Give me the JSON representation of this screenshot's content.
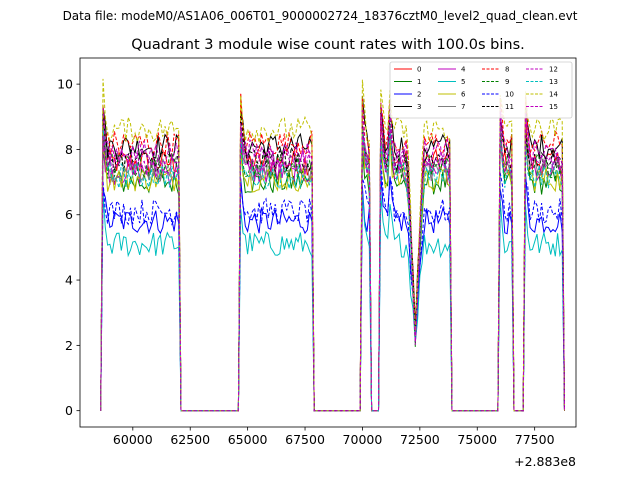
{
  "chart_data": {
    "type": "line",
    "suptitle": "Data file: modeM0/AS1A06_006T01_9000002724_18376cztM0_level2_quad_clean.evt",
    "title": "Quadrant 3 module wise count rates with 100.0s bins.",
    "xlabel": "",
    "ylabel": "",
    "x_offset_label": "+2.883e8",
    "xlim": [
      57700,
      79300
    ],
    "ylim": [
      -0.5,
      10.8
    ],
    "x_ticks": [
      60000,
      62500,
      65000,
      67500,
      70000,
      72500,
      75000,
      77500
    ],
    "x_tick_labels": [
      "60000",
      "62500",
      "65000",
      "67500",
      "70000",
      "72500",
      "75000",
      "77500"
    ],
    "y_ticks": [
      0,
      2,
      4,
      6,
      8,
      10
    ],
    "y_tick_labels": [
      "0",
      "2",
      "4",
      "6",
      "8",
      "10"
    ],
    "legend_location": "upper right",
    "bin_width_s": 100,
    "segments": [
      {
        "start": 58700,
        "end": 62000
      },
      {
        "start": 64700,
        "end": 67800
      },
      {
        "start": 70000,
        "end": 70300
      },
      {
        "start": 70800,
        "end": 71100
      },
      {
        "start": 71200,
        "end": 73800
      },
      {
        "start": 76000,
        "end": 76500
      },
      {
        "start": 77100,
        "end": 78700
      }
    ],
    "dip_time": 72300,
    "series": [
      {
        "name": "0",
        "color": "#ff0000",
        "dash": "solid",
        "level": 7.6
      },
      {
        "name": "1",
        "color": "#008000",
        "dash": "solid",
        "level": 7.0
      },
      {
        "name": "2",
        "color": "#0000ff",
        "dash": "solid",
        "level": 5.8
      },
      {
        "name": "3",
        "color": "#000000",
        "dash": "solid",
        "level": 8.1
      },
      {
        "name": "4",
        "color": "#bf00bf",
        "dash": "solid",
        "level": 7.3
      },
      {
        "name": "5",
        "color": "#00bfbf",
        "dash": "solid",
        "level": 5.1
      },
      {
        "name": "6",
        "color": "#bfbf00",
        "dash": "solid",
        "level": 7.1
      },
      {
        "name": "7",
        "color": "#7f7f7f",
        "dash": "solid",
        "level": 7.4
      },
      {
        "name": "8",
        "color": "#ff0000",
        "dash": "dashed",
        "level": 8.2
      },
      {
        "name": "9",
        "color": "#008000",
        "dash": "dashed",
        "level": 7.5
      },
      {
        "name": "10",
        "color": "#0000ff",
        "dash": "dashed",
        "level": 6.1
      },
      {
        "name": "11",
        "color": "#000000",
        "dash": "dashed",
        "level": 7.7
      },
      {
        "name": "12",
        "color": "#bf00bf",
        "dash": "dashed",
        "level": 7.9
      },
      {
        "name": "13",
        "color": "#00bfbf",
        "dash": "dashed",
        "level": 7.2
      },
      {
        "name": "14",
        "color": "#bfbf00",
        "dash": "dashed",
        "level": 8.6
      },
      {
        "name": "15",
        "color": "#bf00bf",
        "dash": "dashed",
        "level": 7.6
      }
    ]
  }
}
